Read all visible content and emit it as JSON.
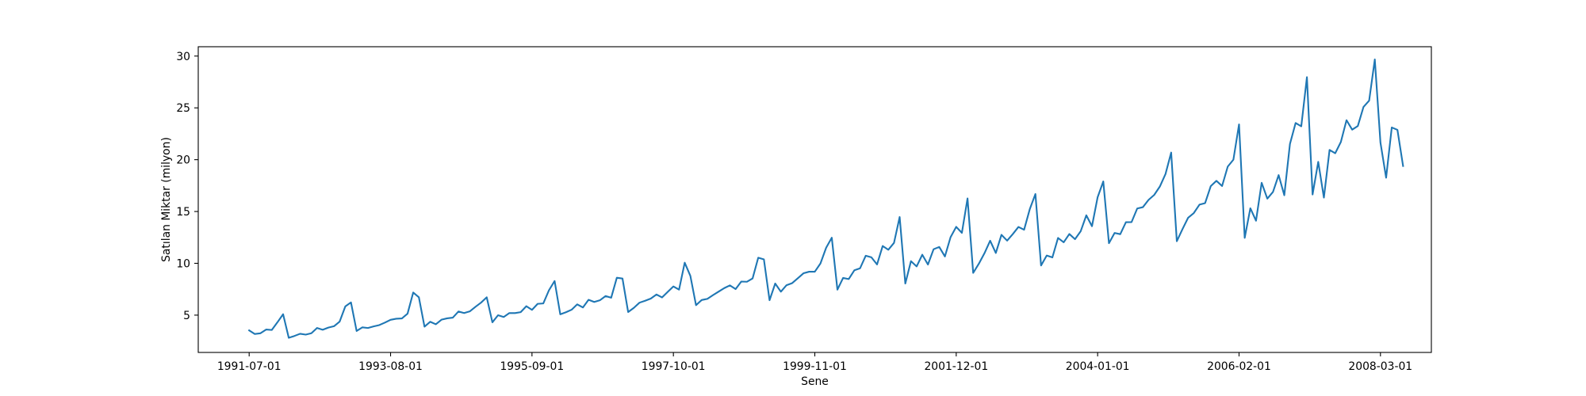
{
  "chart_data": {
    "type": "line",
    "title": "",
    "xlabel": "Sene",
    "ylabel": "Satılan Miktar (milyon)",
    "x_start": "1991-07-01",
    "frequency": "monthly",
    "xlim": [
      "1990-10-01",
      "2008-12-01"
    ],
    "ylim": [
      1.4,
      30.9
    ],
    "yticks": [
      5,
      10,
      15,
      20,
      25,
      30
    ],
    "ytick_labels": [
      "5",
      "10",
      "15",
      "20",
      "25",
      "30"
    ],
    "xticks": [
      "1991-07-01",
      "1993-08-01",
      "1995-09-01",
      "1997-10-01",
      "1999-11-01",
      "2001-12-01",
      "2004-01-01",
      "2006-02-01",
      "2008-03-01"
    ],
    "grid": false,
    "legend": "none",
    "line_color": "#1f77b4",
    "series": [
      {
        "values": [
          3.53,
          3.18,
          3.25,
          3.61,
          3.57,
          4.31,
          5.09,
          2.81,
          2.99,
          3.2,
          3.12,
          3.25,
          3.76,
          3.59,
          3.8,
          3.93,
          4.38,
          5.84,
          6.23,
          3.47,
          3.82,
          3.76,
          3.91,
          4.04,
          4.28,
          4.55,
          4.65,
          4.68,
          5.14,
          7.18,
          6.73,
          3.89,
          4.36,
          4.12,
          4.56,
          4.69,
          4.76,
          5.35,
          5.2,
          5.36,
          5.8,
          6.21,
          6.72,
          4.31,
          4.99,
          4.82,
          5.2,
          5.2,
          5.29,
          5.86,
          5.51,
          6.09,
          6.13,
          7.4,
          8.29,
          5.08,
          5.28,
          5.52,
          6.04,
          5.74,
          6.48,
          6.27,
          6.43,
          6.84,
          6.68,
          8.61,
          8.53,
          5.3,
          5.7,
          6.2,
          6.39,
          6.6,
          6.99,
          6.71,
          7.25,
          7.77,
          7.46,
          10.06,
          8.79,
          5.96,
          6.46,
          6.57,
          6.93,
          7.27,
          7.61,
          7.87,
          7.51,
          8.24,
          8.22,
          8.54,
          10.54,
          10.38,
          6.44,
          8.05,
          7.26,
          7.89,
          8.09,
          8.56,
          9.04,
          9.19,
          9.19,
          9.99,
          11.5,
          12.47,
          7.46,
          8.59,
          8.48,
          9.33,
          9.52,
          10.73,
          10.58,
          9.89,
          11.67,
          11.31,
          11.97,
          14.47,
          8.05,
          10.21,
          9.7,
          10.83,
          9.88,
          11.36,
          11.58,
          10.66,
          12.52,
          13.52,
          12.94,
          16.26,
          9.08,
          9.96,
          10.98,
          12.18,
          11.0,
          12.75,
          12.19,
          12.82,
          13.51,
          13.24,
          15.22,
          16.69,
          9.79,
          10.75,
          10.57,
          12.45,
          12.03,
          12.83,
          12.33,
          13.09,
          14.63,
          13.58,
          16.38,
          17.9,
          11.94,
          12.93,
          12.81,
          13.97,
          13.98,
          15.29,
          15.42,
          16.12,
          16.6,
          17.41,
          18.62,
          20.69,
          12.13,
          13.3,
          14.4,
          14.85,
          15.66,
          15.81,
          17.45,
          17.96,
          17.46,
          19.33,
          20.0,
          23.41,
          12.46,
          15.31,
          14.11,
          17.77,
          16.24,
          16.89,
          18.51,
          16.57,
          21.52,
          23.54,
          23.22,
          27.96,
          16.64,
          19.79,
          16.34,
          20.94,
          20.62,
          21.71,
          23.81,
          22.9,
          23.25,
          25.09,
          25.7,
          29.67,
          21.65,
          18.26,
          23.11,
          22.88,
          19.39
        ]
      }
    ]
  }
}
